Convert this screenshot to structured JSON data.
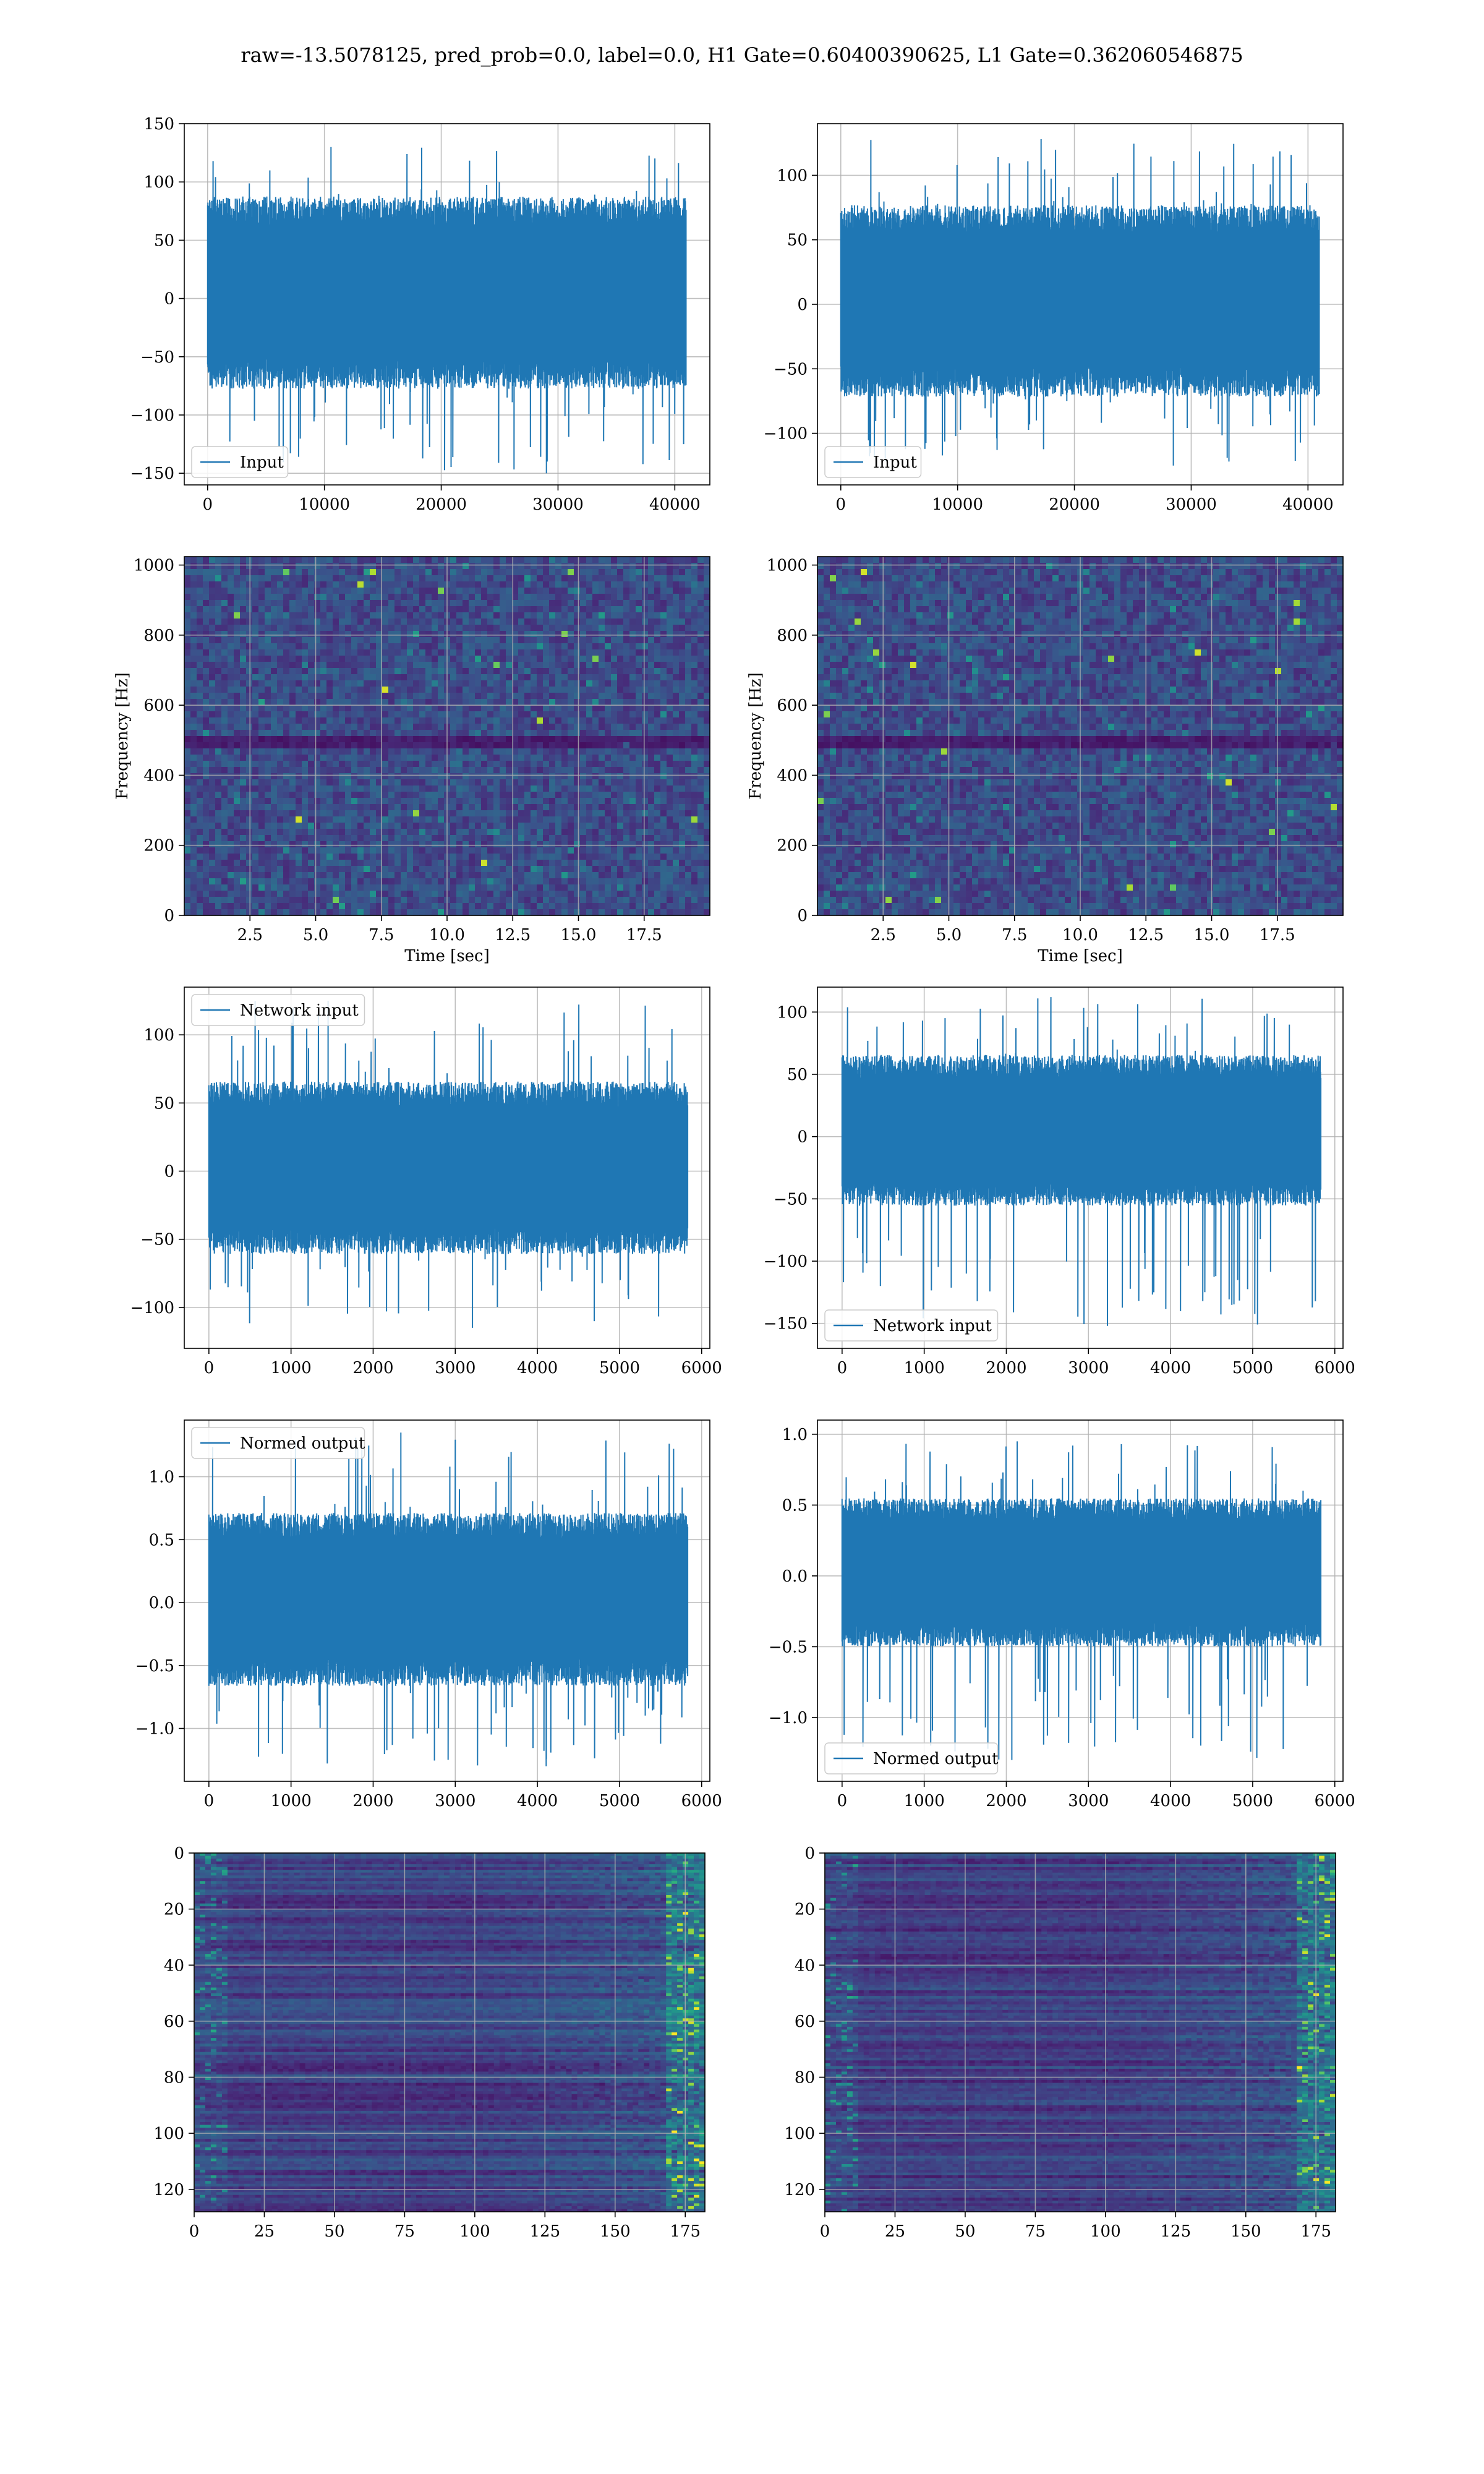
{
  "figure": {
    "title": "raw=-13.5078125, pred_prob=0.0, label=0.0, H1 Gate=0.60400390625, L1 Gate=0.362060546875"
  },
  "colors": {
    "signal": "#1f77b4",
    "grid": "#b0b0b0",
    "spines": "#000000",
    "viridis_dark": "#440154",
    "viridis_mid": "#21918c",
    "viridis_bright": "#fde725"
  },
  "chart_data": [
    {
      "id": "row1-left",
      "type": "line",
      "legend": "Input",
      "legend_loc": "lower-left",
      "xlim": [
        -2000,
        43000
      ],
      "ylim": [
        -160,
        150
      ],
      "xticks": [
        0,
        10000,
        20000,
        30000,
        40000
      ],
      "yticks": [
        -150,
        -100,
        -50,
        0,
        50,
        100,
        150
      ],
      "x_range": [
        0,
        40960
      ],
      "series_envelope": {
        "typical": [
          -70,
          80
        ],
        "peaks": [
          -150,
          130
        ]
      },
      "grid": true
    },
    {
      "id": "row1-right",
      "type": "line",
      "legend": "Input",
      "legend_loc": "lower-left",
      "xlim": [
        -2000,
        43000
      ],
      "ylim": [
        -140,
        140
      ],
      "xticks": [
        0,
        10000,
        20000,
        30000,
        40000
      ],
      "yticks": [
        -100,
        -50,
        0,
        50,
        100
      ],
      "x_range": [
        0,
        40960
      ],
      "series_envelope": {
        "typical": [
          -65,
          70
        ],
        "peaks": [
          -125,
          128
        ]
      },
      "grid": true
    },
    {
      "id": "row2-left",
      "type": "heatmap",
      "xlabel": "Time [sec]",
      "ylabel": "Frequency [Hz]",
      "xlim": [
        0,
        20
      ],
      "ylim": [
        0,
        1024
      ],
      "xticks": [
        2.5,
        5.0,
        7.5,
        10.0,
        12.5,
        15.0,
        17.5
      ],
      "yticks": [
        0,
        200,
        400,
        600,
        800,
        1000
      ],
      "colormap": "viridis",
      "dark_band_hz": [
        480,
        520
      ],
      "grid": true
    },
    {
      "id": "row2-right",
      "type": "heatmap",
      "xlabel": "Time [sec]",
      "ylabel": "Frequency [Hz]",
      "xlim": [
        0,
        20
      ],
      "ylim": [
        0,
        1024
      ],
      "xticks": [
        2.5,
        5.0,
        7.5,
        10.0,
        12.5,
        15.0,
        17.5
      ],
      "yticks": [
        0,
        200,
        400,
        600,
        800,
        1000
      ],
      "colormap": "viridis",
      "dark_band_hz": [
        480,
        520
      ],
      "grid": true
    },
    {
      "id": "row3-left",
      "type": "line",
      "legend": "Network input",
      "legend_loc": "upper-left",
      "xlim": [
        -300,
        6100
      ],
      "ylim": [
        -130,
        135
      ],
      "xticks": [
        0,
        1000,
        2000,
        3000,
        4000,
        5000,
        6000
      ],
      "yticks": [
        -100,
        -50,
        0,
        50,
        100
      ],
      "x_range": [
        0,
        5830
      ],
      "series_envelope": {
        "typical": [
          -55,
          60
        ],
        "peaks": [
          -115,
          125
        ]
      },
      "grid": true
    },
    {
      "id": "row3-right",
      "type": "line",
      "legend": "Network input",
      "legend_loc": "lower-left",
      "xlim": [
        -300,
        6100
      ],
      "ylim": [
        -170,
        120
      ],
      "xticks": [
        0,
        1000,
        2000,
        3000,
        4000,
        5000,
        6000
      ],
      "yticks": [
        -150,
        -100,
        -50,
        0,
        50,
        100
      ],
      "x_range": [
        0,
        5830
      ],
      "series_envelope": {
        "typical": [
          -50,
          60
        ],
        "peaks": [
          -152,
          112
        ]
      },
      "grid": true
    },
    {
      "id": "row4-left",
      "type": "line",
      "legend": "Normed output",
      "legend_loc": "upper-left",
      "xlim": [
        -300,
        6100
      ],
      "ylim": [
        -1.42,
        1.45
      ],
      "xticks": [
        0,
        1000,
        2000,
        3000,
        4000,
        5000,
        6000
      ],
      "yticks": [
        -1.0,
        -0.5,
        0.0,
        0.5,
        1.0
      ],
      "x_range": [
        0,
        5830
      ],
      "series_envelope": {
        "typical": [
          -0.6,
          0.65
        ],
        "peaks": [
          -1.3,
          1.35
        ]
      },
      "grid": true
    },
    {
      "id": "row4-right",
      "type": "line",
      "legend": "Normed output",
      "legend_loc": "lower-left",
      "xlim": [
        -300,
        6100
      ],
      "ylim": [
        -1.45,
        1.1
      ],
      "xticks": [
        0,
        1000,
        2000,
        3000,
        4000,
        5000,
        6000
      ],
      "yticks": [
        -1.0,
        -0.5,
        0.0,
        0.5,
        1.0
      ],
      "x_range": [
        0,
        5830
      ],
      "series_envelope": {
        "typical": [
          -0.45,
          0.5
        ],
        "peaks": [
          -1.3,
          0.95
        ]
      },
      "grid": true
    },
    {
      "id": "row5-left",
      "type": "heatmap",
      "xlim": [
        0,
        182
      ],
      "ylim": [
        128,
        0
      ],
      "xticks": [
        0,
        25,
        50,
        75,
        100,
        125,
        150,
        175
      ],
      "yticks": [
        0,
        20,
        40,
        60,
        80,
        100,
        120
      ],
      "colormap": "viridis",
      "bright_edge": "right",
      "grid": true
    },
    {
      "id": "row5-right",
      "type": "heatmap",
      "xlim": [
        0,
        182
      ],
      "ylim": [
        128,
        0
      ],
      "xticks": [
        0,
        25,
        50,
        75,
        100,
        125,
        150,
        175
      ],
      "yticks": [
        0,
        20,
        40,
        60,
        80,
        100,
        120
      ],
      "colormap": "viridis",
      "bright_edge": "right",
      "grid": true
    }
  ]
}
